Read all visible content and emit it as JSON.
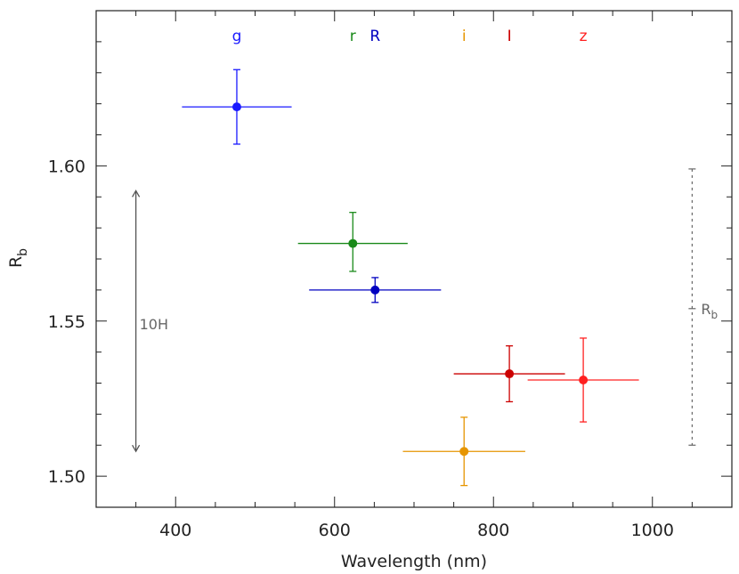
{
  "chart_data": {
    "type": "scatter",
    "title": "",
    "xlabel": "Wavelength (nm)",
    "ylabel_main": "R",
    "ylabel_sub": "b",
    "xlim": [
      300,
      1100
    ],
    "ylim": [
      1.49,
      1.65
    ],
    "x_ticks": [
      400,
      600,
      800,
      1000
    ],
    "x_tick_labels": [
      "400",
      "600",
      "800",
      "1000"
    ],
    "y_ticks": [
      1.5,
      1.55,
      1.6
    ],
    "y_tick_labels": [
      "1.50",
      "1.55",
      "1.60"
    ],
    "grid": false,
    "series": [
      {
        "name": "g",
        "color": "#1a1aff",
        "x": 477,
        "y": 1.619,
        "xerr_lo": 69,
        "xerr_hi": 69,
        "yerr_lo": 0.012,
        "yerr_hi": 0.012
      },
      {
        "name": "r",
        "color": "#1a8a1a",
        "x": 623,
        "y": 1.575,
        "xerr_lo": 69,
        "xerr_hi": 69,
        "yerr_lo": 0.009,
        "yerr_hi": 0.01
      },
      {
        "name": "R",
        "color": "#0000c0",
        "x": 651,
        "y": 1.56,
        "xerr_lo": 83,
        "xerr_hi": 83,
        "yerr_lo": 0.004,
        "yerr_hi": 0.004
      },
      {
        "name": "i",
        "color": "#e69500",
        "x": 763,
        "y": 1.508,
        "xerr_lo": 77,
        "xerr_hi": 77,
        "yerr_lo": 0.011,
        "yerr_hi": 0.011
      },
      {
        "name": "I",
        "color": "#cc0000",
        "x": 820,
        "y": 1.533,
        "xerr_lo": 70,
        "xerr_hi": 70,
        "yerr_lo": 0.009,
        "yerr_hi": 0.009
      },
      {
        "name": "z",
        "color": "#ff2020",
        "x": 913,
        "y": 1.531,
        "xerr_lo": 70,
        "xerr_hi": 70,
        "yerr_lo": 0.0135,
        "yerr_hi": 0.0135
      }
    ],
    "band_labels": [
      {
        "text": "g",
        "x": 477,
        "color": "#1a1aff"
      },
      {
        "text": "r",
        "x": 623,
        "color": "#1a8a1a"
      },
      {
        "text": "R",
        "x": 651,
        "color": "#0000c0"
      },
      {
        "text": "i",
        "x": 763,
        "color": "#e69500"
      },
      {
        "text": "I",
        "x": 820,
        "color": "#cc0000"
      },
      {
        "text": "z",
        "x": 913,
        "color": "#ff2020"
      }
    ],
    "annotations": {
      "h10": {
        "text": "10H",
        "x": 350,
        "y_lo": 1.508,
        "y_hi": 1.592,
        "color": "#555555"
      },
      "rb_range": {
        "text_main": "R",
        "text_sub": "b",
        "x": 1050,
        "y_lo": 1.51,
        "y_mid": 1.554,
        "y_hi": 1.599,
        "color": "#666666"
      }
    }
  }
}
